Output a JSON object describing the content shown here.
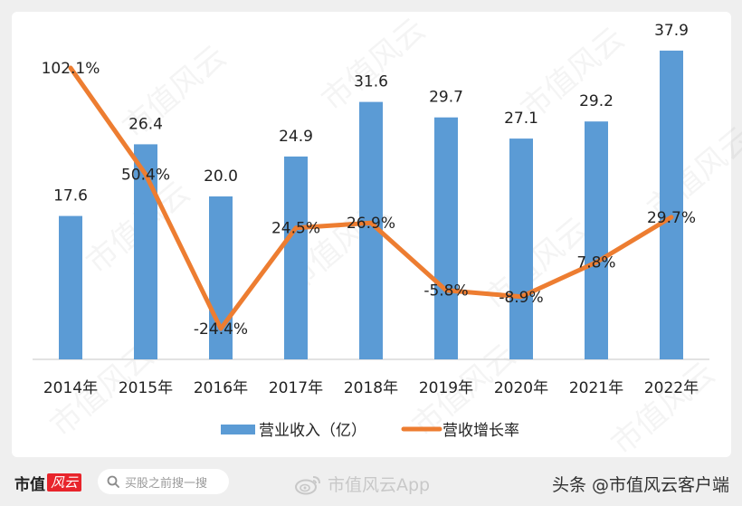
{
  "chart_data": {
    "type": "bar+line",
    "title": "",
    "categories": [
      "2014年",
      "2015年",
      "2016年",
      "2017年",
      "2018年",
      "2019年",
      "2020年",
      "2021年",
      "2022年"
    ],
    "series": [
      {
        "name": "营业收入（亿）",
        "type": "bar",
        "color": "#5b9bd5",
        "values": [
          17.6,
          26.4,
          20.0,
          24.9,
          31.6,
          29.7,
          27.1,
          29.2,
          37.9
        ],
        "labels": [
          "17.6",
          "26.4",
          "20.0",
          "24.9",
          "31.6",
          "29.7",
          "27.1",
          "29.2",
          "37.9"
        ]
      },
      {
        "name": "营收增长率",
        "type": "line",
        "color": "#ed7d31",
        "values": [
          102.1,
          50.4,
          -24.4,
          24.5,
          26.9,
          -5.8,
          -8.9,
          7.8,
          29.7
        ],
        "labels": [
          "102.1%",
          "50.4%",
          "-24.4%",
          "24.5%",
          "26.9%",
          "-5.8%",
          "-8.9%",
          "7.8%",
          "29.7%"
        ]
      }
    ],
    "xlabel": "",
    "ylabel": "",
    "legend_position": "bottom",
    "grid": false
  },
  "legend": {
    "bar_label": "营业收入（亿）",
    "line_label": "营收增长率"
  },
  "watermark": "市值风云",
  "footer": {
    "brand": "市值",
    "brand_badge": "风云",
    "search_placeholder": "买股之前搜一搜",
    "weibo_text": "市值风云App",
    "credit": "头条 @市值风云客户端"
  }
}
